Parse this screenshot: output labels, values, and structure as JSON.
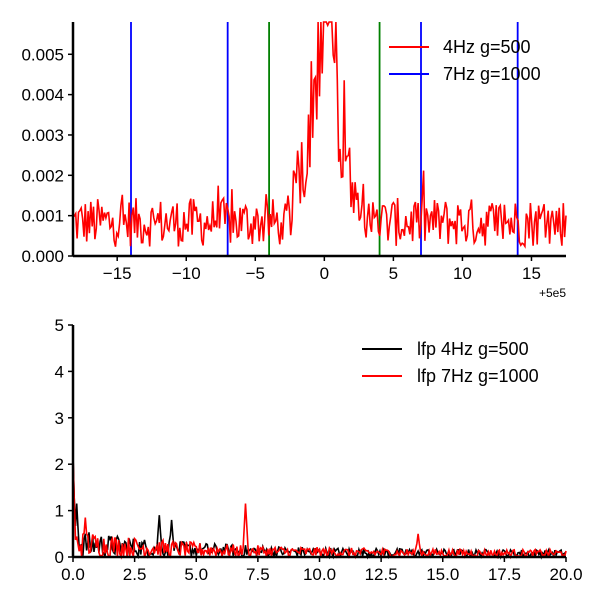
{
  "chart_data": [
    {
      "type": "line",
      "xlim": [
        -18.2,
        17.5
      ],
      "ylim": [
        0,
        0.0058
      ],
      "x_offset_label": "+5e5",
      "x_ticks": [
        -15,
        -10,
        -5,
        0,
        5,
        10,
        15
      ],
      "x_tick_labels": [
        "−15",
        "−10",
        "−5",
        "0",
        "5",
        "10",
        "15"
      ],
      "y_ticks": [
        0,
        0.001,
        0.002,
        0.003,
        0.004,
        0.005
      ],
      "y_tick_labels": [
        "0.000",
        "0.001",
        "0.002",
        "0.003",
        "0.004",
        "0.005"
      ],
      "grid": false,
      "legend_position": "top-right",
      "series": [
        {
          "name": "4Hz g=500",
          "color": "#ff0000",
          "style": "spectrum",
          "peak_x": 0,
          "peak_halfwidth": 3.3,
          "baseline": 0.0009
        },
        {
          "name": "7Hz g=1000",
          "color": "#0000ff",
          "style": "vlines"
        }
      ],
      "vlines": [
        {
          "x": -14,
          "color": "#0000ff"
        },
        {
          "x": -7,
          "color": "#0000ff"
        },
        {
          "x": 7,
          "color": "#0000ff"
        },
        {
          "x": 14,
          "color": "#0000ff"
        },
        {
          "x": -4,
          "color": "#008000"
        },
        {
          "x": 4,
          "color": "#008000"
        }
      ]
    },
    {
      "type": "line",
      "xlim": [
        0,
        20
      ],
      "ylim": [
        0,
        5
      ],
      "x_ticks": [
        0,
        2.5,
        5,
        7.5,
        10,
        12.5,
        15,
        17.5,
        20
      ],
      "x_tick_labels": [
        "0.0",
        "2.5",
        "5.0",
        "7.5",
        "10.0",
        "12.5",
        "15.0",
        "17.5",
        "20.0"
      ],
      "y_ticks": [
        0,
        1,
        2,
        3,
        4,
        5
      ],
      "y_tick_labels": [
        "0",
        "1",
        "2",
        "3",
        "4",
        "5"
      ],
      "grid": false,
      "legend_position": "top-right",
      "series": [
        {
          "name": "lfp 4Hz g=500",
          "color": "#000000",
          "peaks": [
            {
              "x": 0.0,
              "y": 2.2
            },
            {
              "x": 0.15,
              "y": 1.15
            },
            {
              "x": 4.0,
              "y": 0.8
            },
            {
              "x": 3.5,
              "y": 0.9
            }
          ]
        },
        {
          "name": "lfp 7Hz g=1000",
          "color": "#ff0000",
          "peaks": [
            {
              "x": 0.0,
              "y": 2.2
            },
            {
              "x": 7.0,
              "y": 1.15
            },
            {
              "x": 14.0,
              "y": 0.5
            },
            {
              "x": 0.5,
              "y": 0.85
            }
          ]
        }
      ]
    }
  ]
}
